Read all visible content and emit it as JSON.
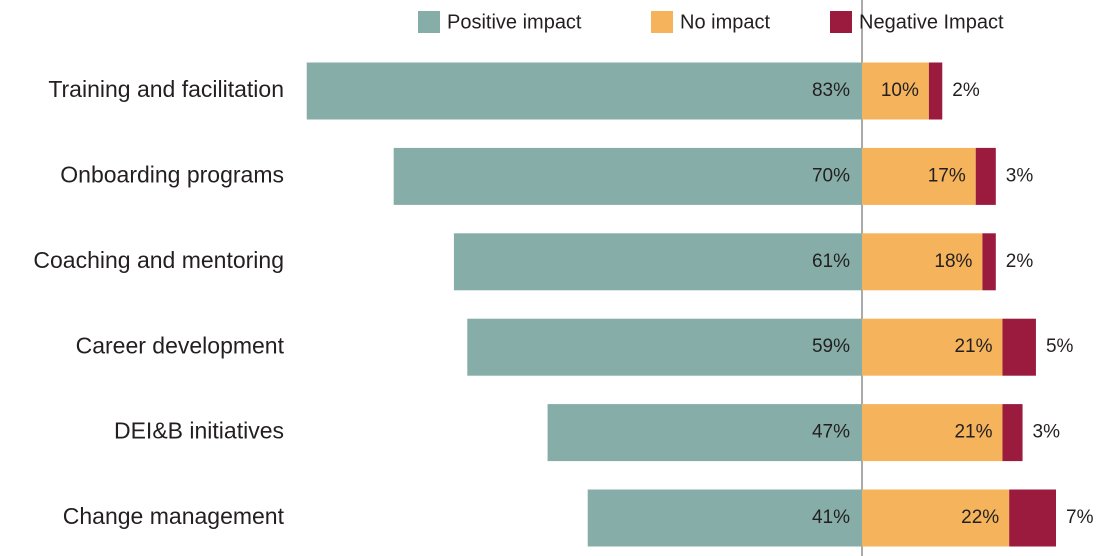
{
  "chart_data": {
    "type": "diverging_bar",
    "categories": [
      "Training and facilitation",
      "Onboarding programs",
      "Coaching and mentoring",
      "Career development",
      "DEI&B initiatives",
      "Change management"
    ],
    "series": [
      {
        "name": "Positive impact",
        "color": "#86ada7",
        "values": [
          83,
          70,
          61,
          59,
          47,
          41
        ],
        "value_labels": [
          "83%",
          "70%",
          "61%",
          "59%",
          "47%",
          "41%"
        ]
      },
      {
        "name": "No impact",
        "color": "#f5b35c",
        "values": [
          10,
          17,
          18,
          21,
          21,
          22
        ],
        "value_labels": [
          "10%",
          "17%",
          "18%",
          "21%",
          "21%",
          "22%"
        ]
      },
      {
        "name": "Negative Impact",
        "color": "#9b1b3f",
        "values": [
          2,
          3,
          2,
          5,
          3,
          7
        ],
        "value_labels": [
          "2%",
          "3%",
          "2%",
          "5%",
          "3%",
          "7%"
        ]
      }
    ],
    "legend": "top"
  }
}
